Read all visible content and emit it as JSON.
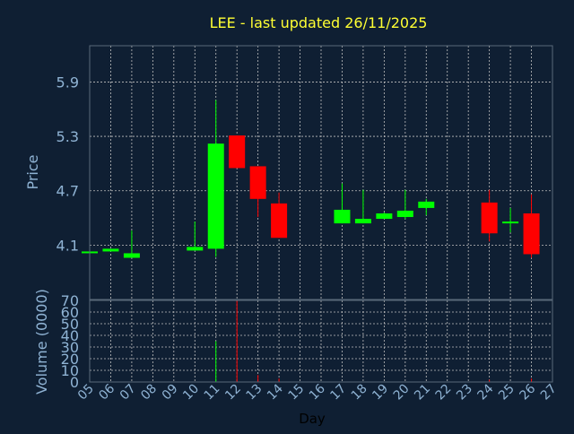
{
  "chart_data": {
    "type": "candlestick",
    "title": "LEE - last updated 26/11/2025",
    "xlabel": "Day",
    "price_panel": {
      "ylabel": "Price",
      "yticks": [
        4.1,
        4.7,
        5.3,
        5.9
      ],
      "ylim": [
        3.5,
        6.3
      ]
    },
    "volume_panel": {
      "ylabel": "Volume (0000)",
      "yticks": [
        0,
        10,
        20,
        30,
        40,
        50,
        60,
        70
      ],
      "ylim": [
        0,
        70
      ]
    },
    "x_ticks": [
      "05",
      "06",
      "07",
      "08",
      "09",
      "10",
      "11",
      "12",
      "13",
      "14",
      "15",
      "16",
      "17",
      "18",
      "19",
      "20",
      "21",
      "22",
      "23",
      "24",
      "25",
      "26",
      "27"
    ],
    "xlim": [
      5,
      27
    ],
    "candles": [
      {
        "day": 5,
        "open": 4.03,
        "high": 4.03,
        "low": 4.03,
        "close": 4.03,
        "volume": 0
      },
      {
        "day": 6,
        "open": 4.03,
        "high": 4.06,
        "low": 4.03,
        "close": 4.06,
        "volume": 0
      },
      {
        "day": 7,
        "open": 3.96,
        "high": 4.26,
        "low": 3.96,
        "close": 4.01,
        "volume": 0
      },
      {
        "day": 10,
        "open": 4.04,
        "high": 4.36,
        "low": 4.04,
        "close": 4.08,
        "volume": 0
      },
      {
        "day": 11,
        "open": 4.06,
        "high": 5.7,
        "low": 3.97,
        "close": 5.22,
        "volume": 35
      },
      {
        "day": 12,
        "open": 5.31,
        "high": 5.31,
        "low": 4.95,
        "close": 4.95,
        "volume": 70
      },
      {
        "day": 13,
        "open": 4.97,
        "high": 4.97,
        "low": 4.41,
        "close": 4.61,
        "volume": 6
      },
      {
        "day": 14,
        "open": 4.56,
        "high": 4.68,
        "low": 4.18,
        "close": 4.18,
        "volume": 3
      },
      {
        "day": 17,
        "open": 4.34,
        "high": 4.78,
        "low": 4.34,
        "close": 4.49,
        "volume": 0
      },
      {
        "day": 18,
        "open": 4.34,
        "high": 4.71,
        "low": 4.34,
        "close": 4.39,
        "volume": 0
      },
      {
        "day": 19,
        "open": 4.39,
        "high": 4.46,
        "low": 4.39,
        "close": 4.45,
        "volume": 0
      },
      {
        "day": 20,
        "open": 4.41,
        "high": 4.71,
        "low": 4.39,
        "close": 4.48,
        "volume": 0
      },
      {
        "day": 21,
        "open": 4.51,
        "high": 4.61,
        "low": 4.43,
        "close": 4.58,
        "volume": 0
      },
      {
        "day": 24,
        "open": 4.57,
        "high": 4.71,
        "low": 4.14,
        "close": 4.23,
        "volume": 2
      },
      {
        "day": 25,
        "open": 4.34,
        "high": 4.51,
        "low": 4.24,
        "close": 4.36,
        "volume": 0
      },
      {
        "day": 26,
        "open": 4.45,
        "high": 4.66,
        "low": 3.96,
        "close": 4.0,
        "volume": 3
      }
    ],
    "colors": {
      "background": "#0f1f33",
      "title": "#ffff33",
      "axis_text": "#8fb3d4",
      "grid": "#c0c0c0",
      "up": "#00ff00",
      "down": "#ff0000"
    },
    "grid": true
  }
}
